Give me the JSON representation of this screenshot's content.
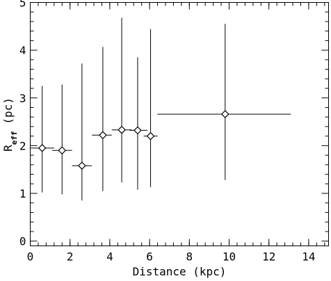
{
  "chart_data": {
    "type": "scatter",
    "title": "",
    "xlabel": "Distance (kpc)",
    "ylabel_main": "R",
    "ylabel_sub": "eff",
    "ylabel_unit": " (pc)",
    "xlim": [
      0,
      15
    ],
    "ylim": [
      -0.1,
      5
    ],
    "grid": false,
    "x_major_ticks": [
      0,
      2,
      4,
      6,
      8,
      10,
      12,
      14
    ],
    "x_tick_labels": [
      "0",
      "2",
      "4",
      "6",
      "8",
      "10",
      "12",
      "14"
    ],
    "x_minor_step": 0.4,
    "y_major_ticks": [
      0,
      1,
      2,
      3,
      4,
      5
    ],
    "y_tick_labels": [
      "0",
      "1",
      "2",
      "3",
      "4",
      "5"
    ],
    "y_minor_step": 0.2,
    "marker": "diamond",
    "points": [
      {
        "x": 0.6,
        "y": 1.95,
        "x_err": [
          0.0,
          1.2
        ],
        "y_err": [
          1.02,
          3.25
        ]
      },
      {
        "x": 1.6,
        "y": 1.9,
        "x_err": [
          1.1,
          2.1
        ],
        "y_err": [
          0.98,
          3.28
        ]
      },
      {
        "x": 2.6,
        "y": 1.58,
        "x_err": [
          2.1,
          3.1
        ],
        "y_err": [
          0.85,
          3.72
        ]
      },
      {
        "x": 3.65,
        "y": 2.22,
        "x_err": [
          3.1,
          4.1
        ],
        "y_err": [
          1.05,
          4.07
        ]
      },
      {
        "x": 4.6,
        "y": 2.33,
        "x_err": [
          4.1,
          5.1
        ],
        "y_err": [
          1.23,
          4.68
        ]
      },
      {
        "x": 5.4,
        "y": 2.32,
        "x_err": [
          5.0,
          5.9
        ],
        "y_err": [
          1.08,
          3.85
        ]
      },
      {
        "x": 6.05,
        "y": 2.2,
        "x_err": [
          5.7,
          6.4
        ],
        "y_err": [
          1.13,
          4.44
        ]
      },
      {
        "x": 9.8,
        "y": 2.66,
        "x_err": [
          6.4,
          13.1
        ],
        "y_err": [
          1.28,
          4.55
        ]
      }
    ]
  }
}
